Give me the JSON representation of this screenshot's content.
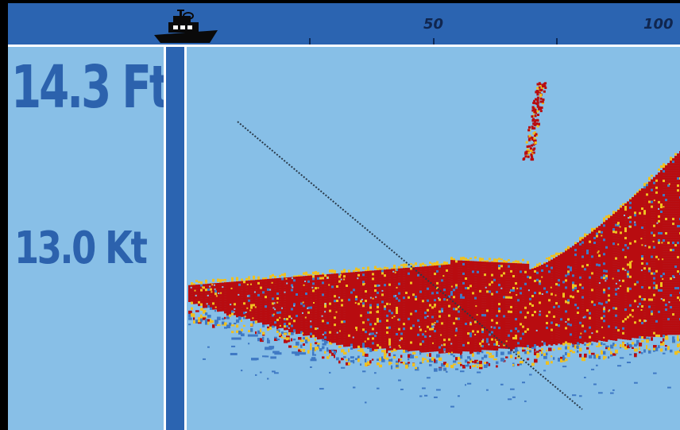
{
  "readouts": {
    "depth": "14.3 Ft",
    "speed": "13.0 Kt"
  },
  "range_scale": {
    "labels": [
      "50",
      "100"
    ]
  },
  "icons": {
    "vessel": "boat-icon"
  },
  "colors": {
    "frame_blue": "#2b64b1",
    "water": "#87bfe7",
    "digits": "#2c62ad",
    "strong_return": "#b80c10",
    "medium_return": "#f0c020",
    "weak_return": "#3f79c4",
    "trail": "#2a3a4a"
  }
}
